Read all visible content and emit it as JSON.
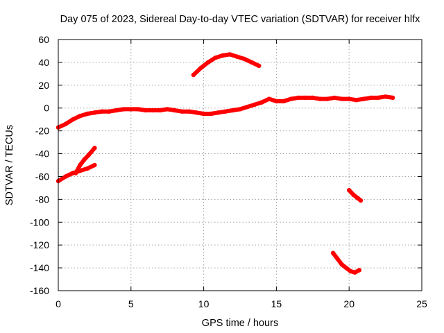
{
  "chart_data": {
    "type": "scatter",
    "title": "Day 075 of 2023, Sidereal Day-to-day VTEC variation (SDTVAR) for receiver hlfx",
    "xlabel": "GPS time / hours",
    "ylabel": "SDTVAR / TECUs",
    "xlim": [
      0,
      25
    ],
    "ylim": [
      -160,
      60
    ],
    "xticks": [
      0,
      5,
      10,
      15,
      20,
      25
    ],
    "xtick_labels": [
      "0",
      "5",
      "10",
      "15",
      "20",
      "25"
    ],
    "yticks": [
      60,
      40,
      20,
      0,
      -20,
      -40,
      -60,
      -80,
      -100,
      -120,
      -140,
      -160
    ],
    "ytick_labels": [
      "60",
      "40",
      "20",
      "0",
      "-20",
      "-40",
      "-60",
      "-80",
      "-100",
      "-120",
      "-140",
      "-160"
    ],
    "grid": true,
    "legend": "none",
    "marker_color": "#ff0000",
    "series": [
      {
        "name": "main-trace",
        "points": [
          [
            0,
            -17
          ],
          [
            0.5,
            -14
          ],
          [
            1,
            -10
          ],
          [
            1.5,
            -7
          ],
          [
            2,
            -5
          ],
          [
            2.5,
            -4
          ],
          [
            3,
            -3
          ],
          [
            3.5,
            -3
          ],
          [
            4,
            -2
          ],
          [
            4.5,
            -1
          ],
          [
            5,
            -1
          ],
          [
            5.5,
            -1
          ],
          [
            6,
            -2
          ],
          [
            6.5,
            -2
          ],
          [
            7,
            -2
          ],
          [
            7.5,
            -1
          ],
          [
            8,
            -2
          ],
          [
            8.5,
            -3
          ],
          [
            9,
            -3
          ],
          [
            9.5,
            -4
          ],
          [
            10,
            -5
          ],
          [
            10.5,
            -5
          ],
          [
            11,
            -4
          ],
          [
            11.5,
            -3
          ],
          [
            12,
            -2
          ],
          [
            12.5,
            -1
          ],
          [
            13,
            1
          ],
          [
            13.5,
            3
          ],
          [
            14,
            5
          ],
          [
            14.5,
            8
          ],
          [
            15,
            6
          ],
          [
            15.5,
            6
          ],
          [
            16,
            8
          ],
          [
            16.5,
            9
          ],
          [
            17,
            9
          ],
          [
            17.5,
            9
          ],
          [
            18,
            8
          ],
          [
            18.5,
            8
          ],
          [
            19,
            9
          ],
          [
            19.5,
            8
          ],
          [
            20,
            8
          ],
          [
            20.5,
            7
          ],
          [
            21,
            8
          ],
          [
            21.5,
            9
          ],
          [
            22,
            9
          ],
          [
            22.5,
            10
          ],
          [
            23,
            9
          ]
        ]
      },
      {
        "name": "upper-arc",
        "points": [
          [
            9.3,
            29
          ],
          [
            9.8,
            35
          ],
          [
            10.3,
            40
          ],
          [
            10.8,
            44
          ],
          [
            11.3,
            46
          ],
          [
            11.8,
            47
          ],
          [
            12.3,
            45
          ],
          [
            12.8,
            43
          ],
          [
            13.3,
            40
          ],
          [
            13.8,
            37
          ]
        ]
      },
      {
        "name": "low-start-lower",
        "points": [
          [
            0,
            -64
          ],
          [
            0.5,
            -60
          ],
          [
            1,
            -57
          ],
          [
            1.5,
            -55
          ],
          [
            2,
            -53
          ],
          [
            2.5,
            -50
          ]
        ]
      },
      {
        "name": "low-start-upper",
        "points": [
          [
            1.2,
            -57
          ],
          [
            1.5,
            -50
          ],
          [
            1.8,
            -45
          ],
          [
            2.1,
            -41
          ],
          [
            2.5,
            -35
          ]
        ]
      },
      {
        "name": "late-short",
        "points": [
          [
            20,
            -72
          ],
          [
            20.3,
            -76
          ],
          [
            20.6,
            -79
          ],
          [
            20.8,
            -81
          ]
        ]
      },
      {
        "name": "late-deep",
        "points": [
          [
            18.9,
            -127
          ],
          [
            19.2,
            -132
          ],
          [
            19.5,
            -137
          ],
          [
            19.8,
            -140
          ],
          [
            20.1,
            -143
          ],
          [
            20.4,
            -144
          ],
          [
            20.7,
            -142
          ]
        ]
      }
    ]
  }
}
